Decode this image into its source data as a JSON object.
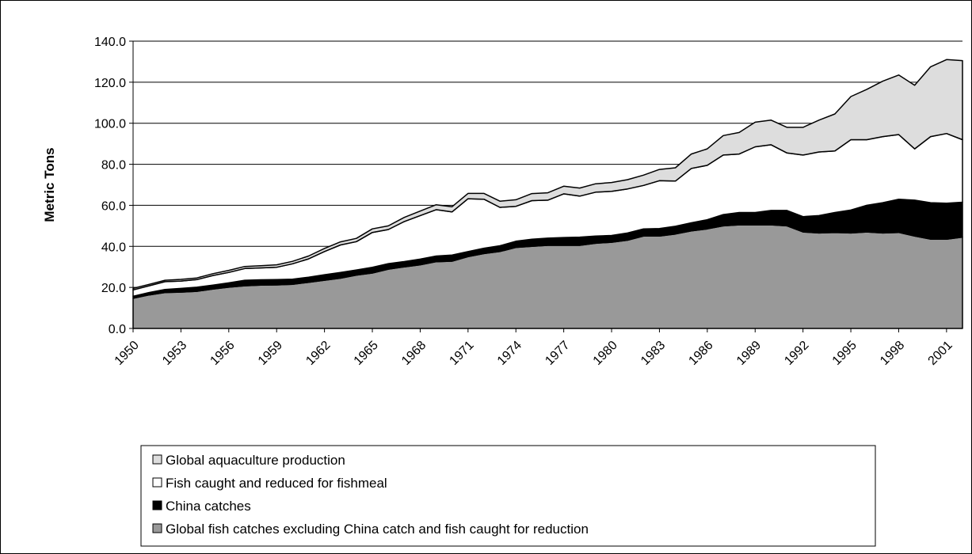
{
  "chart_data": {
    "type": "area",
    "stacked": true,
    "ylabel": "Metric Tons",
    "xlabel": "",
    "ylim": [
      0,
      140
    ],
    "yticks": [
      "0.0",
      "20.0",
      "40.0",
      "60.0",
      "80.0",
      "100.0",
      "120.0",
      "140.0"
    ],
    "xtick_labels": [
      "1950",
      "1953",
      "1956",
      "1959",
      "1962",
      "1965",
      "1968",
      "1971",
      "1974",
      "1977",
      "1980",
      "1983",
      "1986",
      "1989",
      "1992",
      "1995",
      "1998",
      "2001"
    ],
    "grid": "horizontal",
    "legend_position": "bottom",
    "x": [
      1950,
      1951,
      1952,
      1953,
      1954,
      1955,
      1956,
      1957,
      1958,
      1959,
      1960,
      1961,
      1962,
      1963,
      1964,
      1965,
      1966,
      1967,
      1968,
      1969,
      1970,
      1971,
      1972,
      1973,
      1974,
      1975,
      1976,
      1977,
      1978,
      1979,
      1980,
      1981,
      1982,
      1983,
      1984,
      1985,
      1986,
      1987,
      1988,
      1989,
      1990,
      1991,
      1992,
      1993,
      1994,
      1995,
      1996,
      1997,
      1998,
      1999,
      2000,
      2001,
      2002
    ],
    "series": [
      {
        "name": "Global fish catches excluding China catch and fish caught for reduction",
        "color": "#999999",
        "values": [
          14.7,
          16.3,
          17.5,
          17.7,
          18.1,
          19.2,
          20.1,
          20.8,
          21.1,
          21.2,
          21.5,
          22.5,
          23.5,
          24.5,
          26.0,
          27.0,
          28.9,
          30.0,
          31.0,
          32.5,
          32.8,
          35.0,
          36.5,
          37.5,
          39.5,
          40.0,
          40.5,
          40.5,
          40.5,
          41.5,
          42.0,
          43.0,
          45.0,
          45.0,
          46.0,
          47.5,
          48.5,
          50.0,
          50.5,
          50.5,
          50.5,
          50.0,
          47.0,
          46.5,
          46.8,
          46.5,
          47.0,
          46.5,
          46.8,
          45.0,
          43.5,
          43.5,
          44.5
        ]
      },
      {
        "name": "China catches",
        "color": "#000000",
        "values": [
          1.0,
          1.2,
          1.5,
          1.8,
          2.0,
          1.9,
          2.1,
          2.7,
          2.6,
          2.6,
          2.5,
          2.5,
          2.7,
          2.8,
          2.5,
          2.8,
          2.7,
          2.6,
          2.8,
          2.8,
          3.0,
          2.5,
          2.6,
          2.8,
          3.0,
          3.5,
          3.5,
          3.8,
          4.0,
          3.5,
          3.3,
          3.5,
          3.5,
          3.7,
          3.8,
          4.0,
          4.5,
          5.5,
          6.0,
          6.0,
          7.0,
          7.5,
          7.5,
          8.5,
          9.7,
          11.2,
          13.0,
          14.8,
          16.2,
          17.5,
          17.8,
          17.5,
          17.0
        ]
      },
      {
        "name": "Fish caught and reduced for fishmeal",
        "color": "#ffffff",
        "values": [
          3.1,
          3.3,
          3.8,
          3.6,
          3.7,
          4.7,
          5.1,
          5.7,
          5.8,
          6.0,
          7.5,
          8.9,
          11.3,
          13.4,
          13.8,
          17.0,
          16.6,
          19.5,
          21.2,
          22.6,
          21.0,
          25.7,
          23.9,
          18.7,
          17.0,
          18.8,
          18.5,
          21.3,
          20.0,
          21.4,
          21.5,
          21.5,
          21.2,
          23.3,
          22.0,
          26.5,
          26.5,
          29.0,
          28.5,
          32.0,
          32.0,
          28.0,
          30.0,
          31.0,
          30.0,
          34.3,
          32.0,
          32.2,
          31.5,
          25.0,
          32.2,
          34.0,
          30.5
        ]
      },
      {
        "name": "Global aquaculture production",
        "color": "#dddddd",
        "values": [
          0.7,
          0.7,
          0.7,
          0.8,
          0.8,
          0.9,
          1.0,
          1.0,
          1.1,
          1.2,
          1.2,
          1.4,
          1.5,
          1.5,
          1.6,
          1.7,
          1.8,
          2.0,
          2.2,
          2.4,
          2.5,
          2.6,
          2.8,
          3.0,
          3.2,
          3.4,
          3.6,
          3.7,
          3.9,
          4.1,
          4.3,
          4.5,
          5.0,
          5.5,
          6.5,
          7.0,
          8.0,
          9.5,
          10.5,
          12.0,
          12.0,
          12.5,
          13.5,
          15.5,
          18.0,
          21.0,
          24.5,
          27.0,
          29.0,
          31.0,
          34.0,
          36.0,
          38.5
        ]
      }
    ]
  },
  "legend": {
    "items": [
      {
        "label": "Global aquaculture production",
        "color": "#dddddd"
      },
      {
        "label": "Fish caught and reduced for fishmeal",
        "color": "#ffffff"
      },
      {
        "label": "China catches",
        "color": "#000000"
      },
      {
        "label": "Global fish catches excluding China catch and fish caught for reduction",
        "color": "#999999"
      }
    ]
  }
}
